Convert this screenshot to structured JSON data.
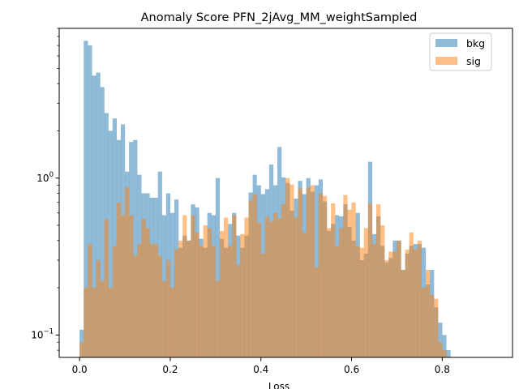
{
  "chart_data": {
    "type": "histogram",
    "title": "Anomaly Score PFN_2jAvg_MM_weightSampled",
    "xlabel": "Loss",
    "ylabel": "",
    "xlim": [
      -0.045,
      0.955
    ],
    "ylim": [
      0.072,
      9.0
    ],
    "yscale": "log",
    "grid": false,
    "legend_position": "top-right",
    "xticks": [
      0.0,
      0.2,
      0.4,
      0.6,
      0.8
    ],
    "xtick_labels": [
      "0.0",
      "0.2",
      "0.4",
      "0.6",
      "0.8"
    ],
    "yticks": [
      0.1,
      1.0
    ],
    "ytick_labels": [
      "10^-1",
      "10^0"
    ],
    "bins": {
      "start": 0.0,
      "width": 0.00909
    },
    "series": [
      {
        "name": "bkg",
        "color": "#1f77b4",
        "alpha": 0.5,
        "values": [
          0.108,
          7.5,
          7.0,
          4.5,
          4.7,
          3.8,
          2.6,
          2.0,
          2.4,
          1.75,
          2.2,
          1.1,
          1.7,
          1.75,
          1.05,
          0.8,
          0.8,
          0.75,
          0.75,
          1.1,
          0.58,
          0.8,
          0.6,
          0.73,
          0.36,
          0.43,
          0.4,
          0.68,
          0.65,
          0.41,
          0.36,
          0.6,
          0.58,
          1.0,
          0.41,
          0.36,
          0.51,
          0.6,
          0.43,
          0.36,
          0.43,
          0.81,
          1.05,
          0.9,
          0.79,
          0.85,
          1.22,
          0.9,
          1.58,
          1.01,
          0.93,
          0.62,
          0.74,
          0.96,
          0.79,
          1.0,
          0.82,
          0.9,
          0.98,
          0.71,
          0.46,
          0.51,
          0.58,
          0.57,
          0.68,
          0.49,
          0.4,
          0.6,
          0.3,
          0.33,
          1.27,
          0.44,
          0.57,
          0.37,
          0.29,
          0.31,
          0.4,
          0.4,
          0.26,
          0.33,
          0.37,
          0.38,
          0.38,
          0.36,
          0.21,
          0.26,
          0.15,
          0.12,
          0.1,
          0.08
        ]
      },
      {
        "name": "sig",
        "color": "#ff7f0e",
        "alpha": 0.5,
        "values": [
          0.09,
          0.2,
          0.38,
          0.2,
          0.3,
          0.22,
          0.55,
          0.2,
          0.37,
          0.7,
          0.58,
          0.88,
          0.58,
          0.32,
          0.38,
          0.55,
          0.48,
          0.38,
          0.38,
          0.32,
          0.22,
          0.3,
          0.2,
          0.35,
          0.4,
          0.58,
          0.4,
          0.58,
          0.45,
          0.37,
          0.5,
          0.48,
          0.37,
          0.22,
          0.46,
          0.56,
          0.37,
          0.58,
          0.28,
          0.44,
          0.56,
          0.72,
          0.79,
          0.52,
          0.33,
          0.57,
          0.53,
          0.6,
          0.55,
          0.68,
          1.0,
          0.91,
          0.56,
          0.86,
          0.45,
          0.87,
          0.9,
          0.27,
          0.8,
          0.77,
          0.48,
          0.69,
          0.37,
          0.48,
          0.78,
          0.63,
          0.7,
          0.37,
          0.36,
          0.48,
          0.69,
          0.38,
          0.68,
          0.5,
          0.3,
          0.34,
          0.34,
          0.4,
          0.26,
          0.35,
          0.45,
          0.35,
          0.4,
          0.2,
          0.26,
          0.18,
          0.17,
          0.09,
          0.08,
          0.07,
          0.0
        ]
      },
      {
        "name": "sig",
        "role": "upper_envelope",
        "values": [
          0.09,
          0.2,
          0.38,
          0.2,
          0.3,
          0.22,
          0.55,
          0.2,
          0.37,
          0.7,
          0.58,
          0.88,
          0.58,
          0.32,
          0.38,
          0.55,
          0.48,
          0.38,
          0.38,
          0.32,
          0.22,
          0.3,
          0.2,
          0.35,
          0.4,
          0.58,
          0.4,
          0.58,
          0.45,
          0.37,
          0.5,
          0.48,
          0.37,
          0.22,
          0.46,
          0.56,
          0.37,
          0.58,
          0.28,
          0.44,
          0.56,
          0.72,
          0.79,
          0.52,
          0.33,
          0.57,
          0.53,
          0.6,
          0.55,
          0.68,
          1.0,
          0.91,
          0.56,
          0.86,
          0.45,
          0.87,
          0.9,
          0.27,
          0.8,
          0.77,
          0.48,
          0.69,
          0.37,
          0.48,
          0.78,
          0.63,
          0.7,
          0.37,
          0.36,
          0.48,
          0.69,
          0.38,
          0.68,
          0.5,
          0.3,
          0.34,
          0.34,
          0.4,
          0.26,
          0.35,
          0.45,
          0.35,
          0.4,
          0.2,
          0.26,
          0.18,
          0.17,
          0.09,
          0.08,
          0.07,
          0.0
        ]
      }
    ]
  }
}
